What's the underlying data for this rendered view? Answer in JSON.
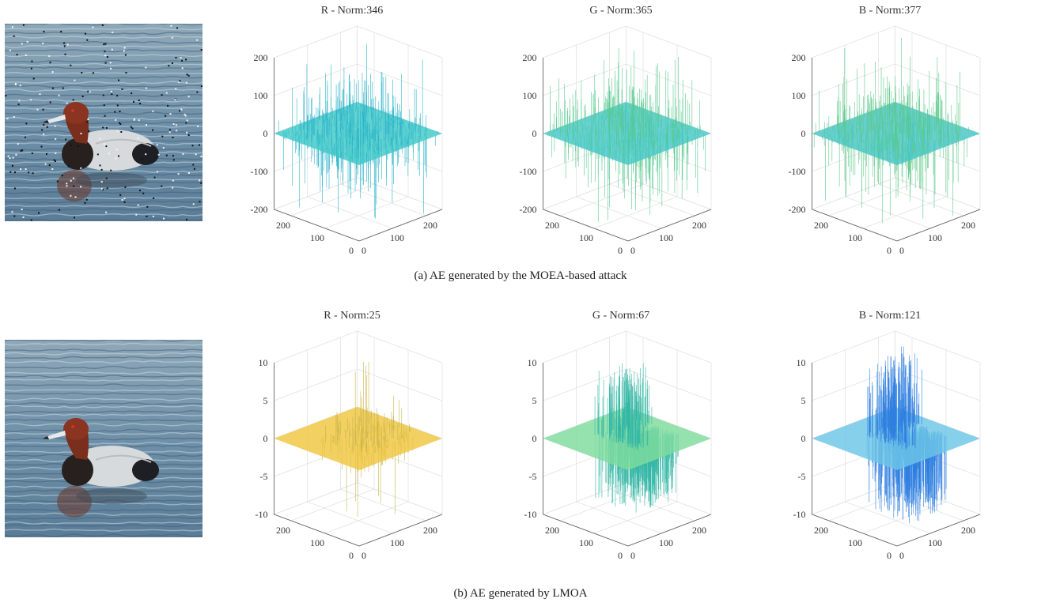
{
  "panels": [
    {
      "id": "a",
      "caption": "(a)  AE generated by the MOEA-based attack",
      "image_alt": "Duck on water with scattered pixel noise",
      "noisy_image": true,
      "chart_data": [
        {
          "type": "surface3d-bars",
          "title": "R - Norm:346",
          "zlim": [
            -200,
            200
          ],
          "zticks": [
            "200",
            "100",
            "0",
            "-100",
            "-200"
          ],
          "xticks": [
            "0",
            "100",
            "200"
          ],
          "yticks": [
            "0",
            "100",
            "200"
          ],
          "plane_color": "#3fc8c8",
          "spike_color": "#2bb3c9",
          "spike_amp": 1,
          "spike_extent": "full",
          "grid": true
        },
        {
          "type": "surface3d-bars",
          "title": "G - Norm:365",
          "zlim": [
            -200,
            200
          ],
          "zticks": [
            "200",
            "100",
            "0",
            "-100",
            "-200"
          ],
          "xticks": [
            "0",
            "100",
            "200"
          ],
          "yticks": [
            "0",
            "100",
            "200"
          ],
          "plane_color": "#43c7c6",
          "spike_color": "#58c98f",
          "spike_amp": 1,
          "spike_extent": "full",
          "grid": true
        },
        {
          "type": "surface3d-bars",
          "title": "B - Norm:377",
          "zlim": [
            -200,
            200
          ],
          "zticks": [
            "200",
            "100",
            "0",
            "-100",
            "-200"
          ],
          "xticks": [
            "0",
            "100",
            "200"
          ],
          "yticks": [
            "0",
            "100",
            "200"
          ],
          "plane_color": "#45c6c4",
          "spike_color": "#5cc98a",
          "spike_amp": 1,
          "spike_extent": "full",
          "grid": true
        }
      ]
    },
    {
      "id": "b",
      "caption": "(b)  AE generated by LMOA",
      "image_alt": "Duck on water, clean looking adversarial example",
      "noisy_image": false,
      "chart_data": [
        {
          "type": "surface3d-bars",
          "title": "R - Norm:25",
          "zlim": [
            -10,
            10
          ],
          "zticks": [
            "10",
            "5",
            "0",
            "-5",
            "-10"
          ],
          "xticks": [
            "0",
            "100",
            "200"
          ],
          "yticks": [
            "0",
            "100",
            "200"
          ],
          "plane_color": "#efc640",
          "spike_color": "#c9b44a",
          "spike_amp": 0.55,
          "spike_extent": "central",
          "grid": true
        },
        {
          "type": "surface3d-bars",
          "title": "G - Norm:67",
          "zlim": [
            -10,
            10
          ],
          "zticks": [
            "10",
            "5",
            "0",
            "-5",
            "-10"
          ],
          "xticks": [
            "0",
            "100",
            "200"
          ],
          "yticks": [
            "0",
            "100",
            "200"
          ],
          "plane_color": "#7fdc9d",
          "spike_color": "#35b7a6",
          "spike_amp": 0.85,
          "spike_extent": "blob",
          "grid": true
        },
        {
          "type": "surface3d-bars",
          "title": "B - Norm:121",
          "zlim": [
            -10,
            10
          ],
          "zticks": [
            "10",
            "5",
            "0",
            "-5",
            "-10"
          ],
          "xticks": [
            "0",
            "100",
            "200"
          ],
          "yticks": [
            "0",
            "100",
            "200"
          ],
          "plane_color": "#6cc6e6",
          "spike_color": "#2f7fe0",
          "spike_amp": 1,
          "spike_extent": "blob",
          "grid": true
        }
      ]
    }
  ]
}
